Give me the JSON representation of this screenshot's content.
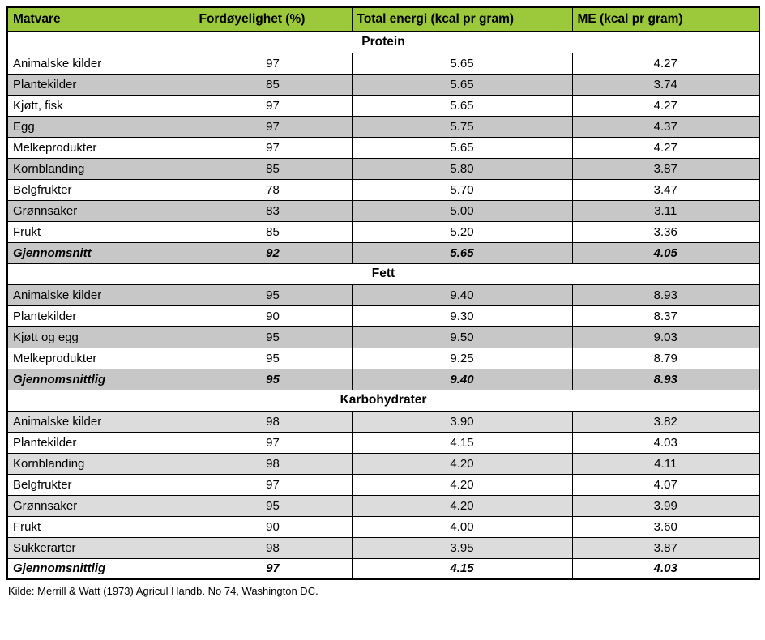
{
  "table": {
    "colors": {
      "header_bg": "#9cc93b",
      "row_gray": "#c7c7c7",
      "row_lightgray": "#dcdcdc",
      "border": "#000000"
    },
    "columns": [
      "Matvare",
      "Fordøyelighet (%)",
      "Total energi (kcal pr gram)",
      "ME (kcal pr gram)"
    ],
    "sections": [
      {
        "title": "Protein",
        "rows": [
          {
            "matvare": "Animalske kilder",
            "ford": "97",
            "energi": "5.65",
            "me": "4.27",
            "bg": "white"
          },
          {
            "matvare": "Plantekilder",
            "ford": "85",
            "energi": "5.65",
            "me": "3.74",
            "bg": "gray"
          },
          {
            "matvare": "Kjøtt, fisk",
            "ford": "97",
            "energi": "5.65",
            "me": "4.27",
            "bg": "white"
          },
          {
            "matvare": "Egg",
            "ford": "97",
            "energi": "5.75",
            "me": "4.37",
            "bg": "gray"
          },
          {
            "matvare": "Melkeprodukter",
            "ford": "97",
            "energi": "5.65",
            "me": "4.27",
            "bg": "white"
          },
          {
            "matvare": "Kornblanding",
            "ford": "85",
            "energi": "5.80",
            "me": "3.87",
            "bg": "gray"
          },
          {
            "matvare": "Belgfrukter",
            "ford": "78",
            "energi": "5.70",
            "me": "3.47",
            "bg": "white"
          },
          {
            "matvare": "Grønnsaker",
            "ford": "83",
            "energi": "5.00",
            "me": "3.11",
            "bg": "gray"
          },
          {
            "matvare": "Frukt",
            "ford": "85",
            "energi": "5.20",
            "me": "3.36",
            "bg": "white"
          },
          {
            "matvare": "Gjennomsnitt",
            "ford": "92",
            "energi": "5.65",
            "me": "4.05",
            "bg": "gray",
            "emphasis": true
          }
        ]
      },
      {
        "title": "Fett",
        "rows": [
          {
            "matvare": "Animalske kilder",
            "ford": "95",
            "energi": "9.40",
            "me": "8.93",
            "bg": "gray"
          },
          {
            "matvare": "Plantekilder",
            "ford": "90",
            "energi": "9.30",
            "me": "8.37",
            "bg": "white"
          },
          {
            "matvare": "Kjøtt og egg",
            "ford": "95",
            "energi": "9.50",
            "me": "9.03",
            "bg": "gray"
          },
          {
            "matvare": "Melkeprodukter",
            "ford": "95",
            "energi": "9.25",
            "me": "8.79",
            "bg": "white"
          },
          {
            "matvare": "Gjennomsnittlig",
            "ford": "95",
            "energi": "9.40",
            "me": "8.93",
            "bg": "gray",
            "emphasis": true
          }
        ]
      },
      {
        "title": "Karbohydrater",
        "rows": [
          {
            "matvare": "Animalske kilder",
            "ford": "98",
            "energi": "3.90",
            "me": "3.82",
            "bg": "lightgray"
          },
          {
            "matvare": "Plantekilder",
            "ford": "97",
            "energi": "4.15",
            "me": "4.03",
            "bg": "white"
          },
          {
            "matvare": "Kornblanding",
            "ford": "98",
            "energi": "4.20",
            "me": "4.11",
            "bg": "lightgray"
          },
          {
            "matvare": "Belgfrukter",
            "ford": "97",
            "energi": "4.20",
            "me": "4.07",
            "bg": "white"
          },
          {
            "matvare": "Grønnsaker",
            "ford": "95",
            "energi": "4.20",
            "me": "3.99",
            "bg": "lightgray"
          },
          {
            "matvare": "Frukt",
            "ford": "90",
            "energi": "4.00",
            "me": "3.60",
            "bg": "white"
          },
          {
            "matvare": "Sukkerarter",
            "ford": "98",
            "energi": "3.95",
            "me": "3.87",
            "bg": "lightgray"
          },
          {
            "matvare": "Gjennomsnittlig",
            "ford": "97",
            "energi": "4.15",
            "me": "4.03",
            "bg": "white",
            "emphasis": true
          }
        ]
      }
    ]
  },
  "footer": {
    "source": "Kilde: Merrill & Watt (1973) Agricul Handb. No 74, Washington DC."
  }
}
